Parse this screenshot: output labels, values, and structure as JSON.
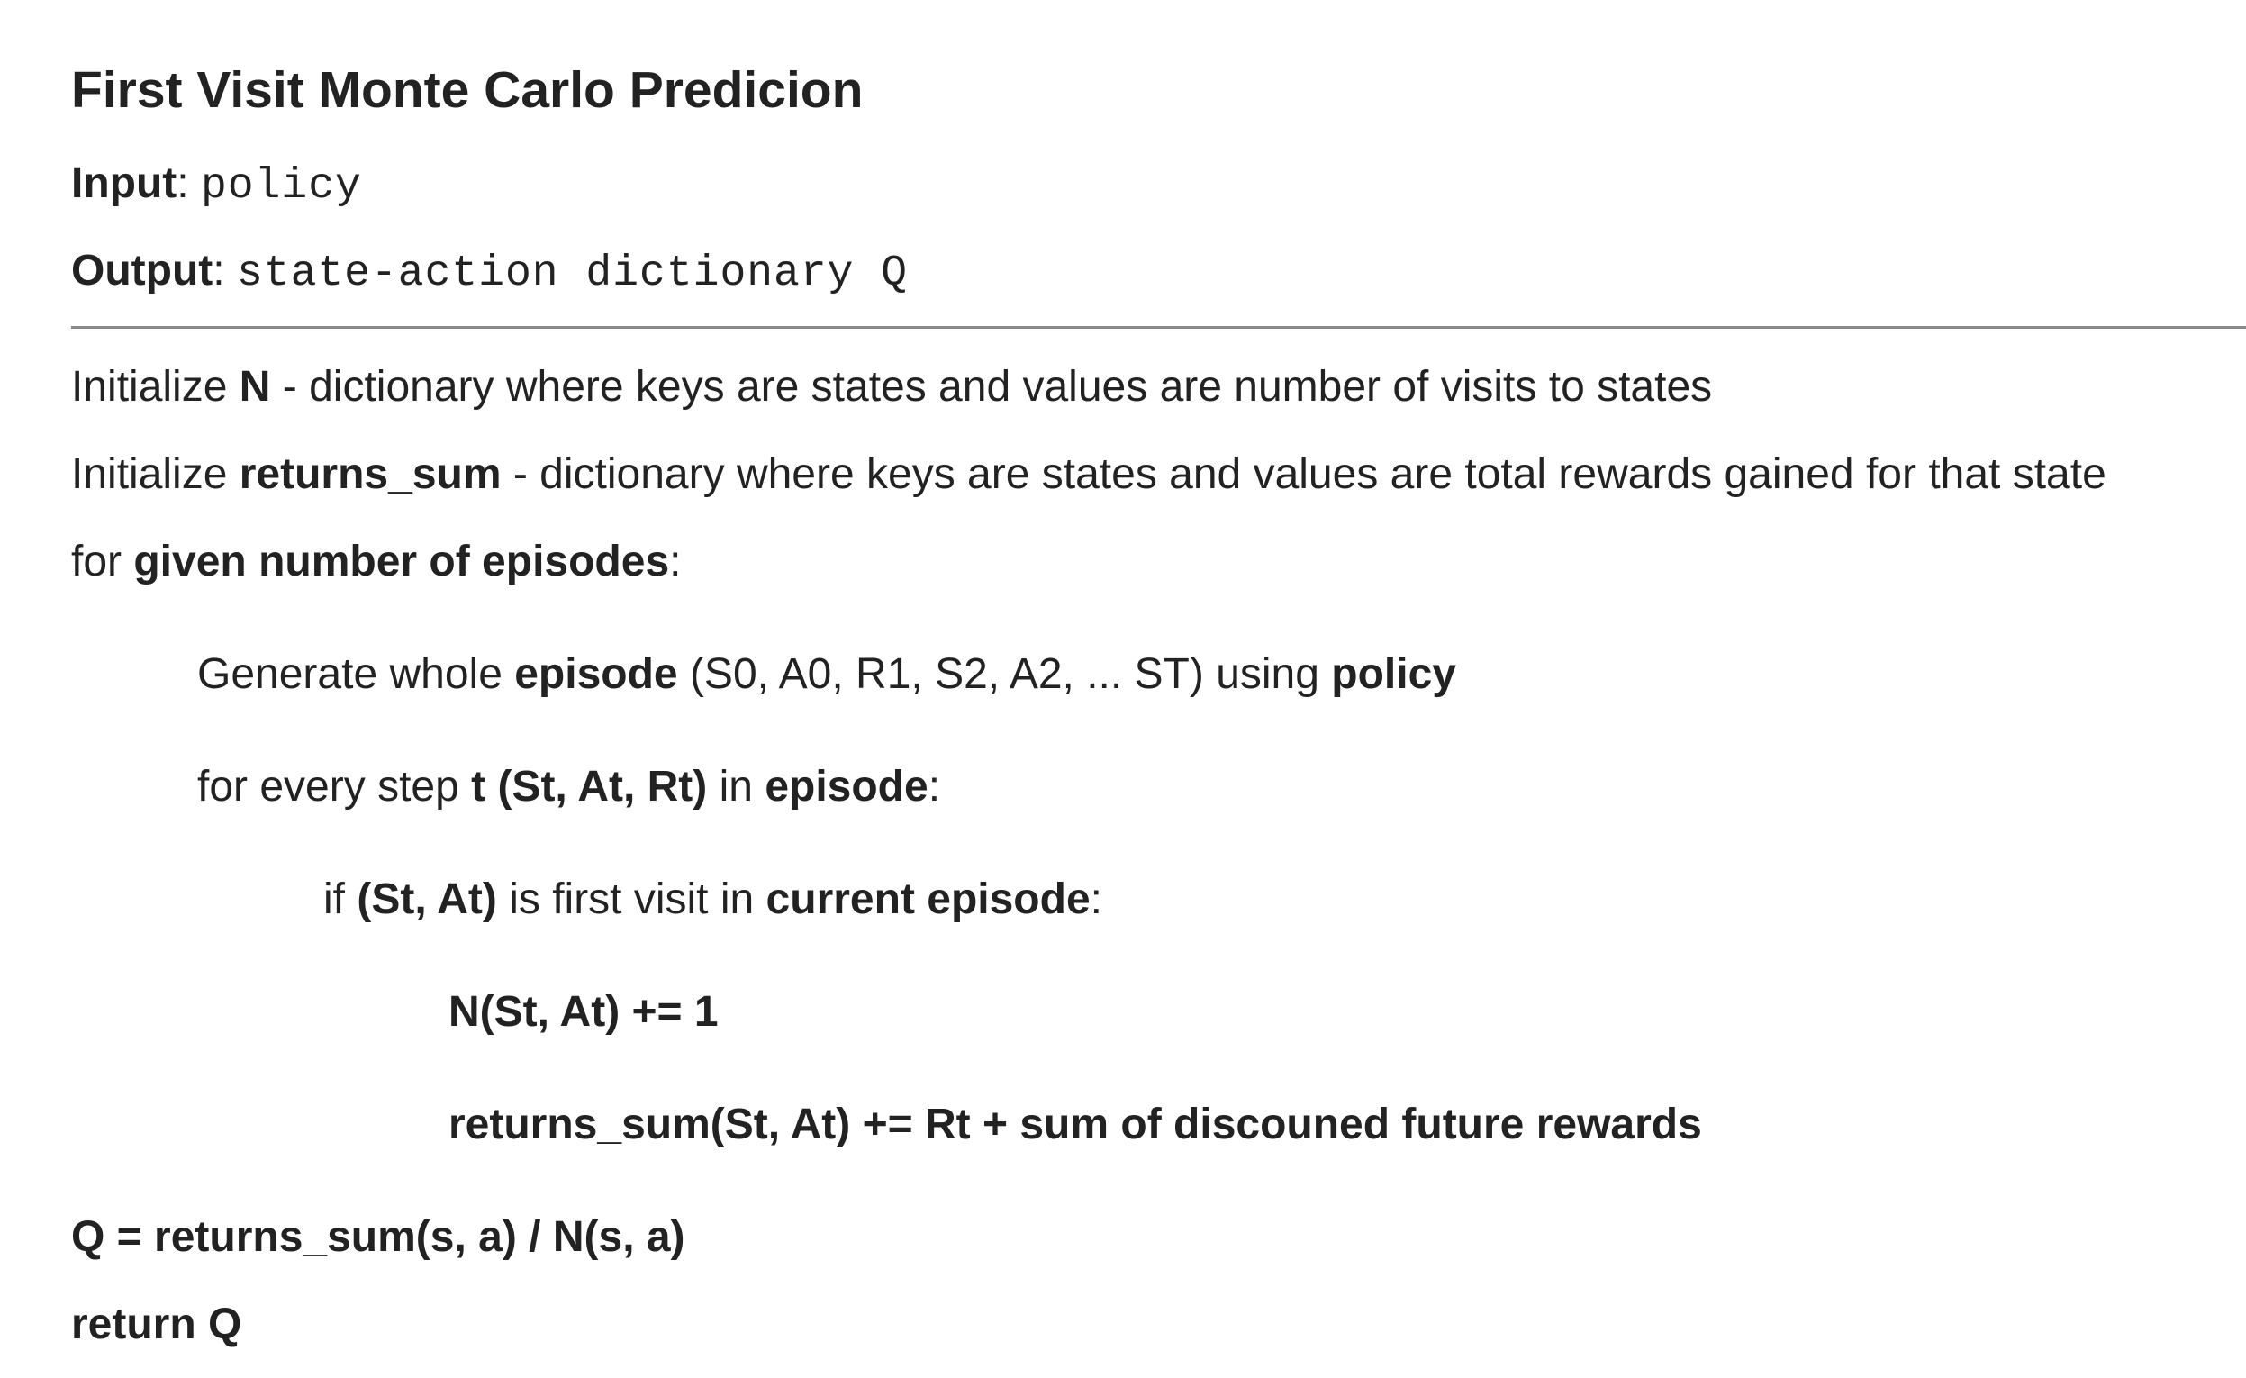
{
  "title": "First Visit Monte Carlo Predicion",
  "input": {
    "label": "Input",
    "sep": ":",
    "value": "policy"
  },
  "output": {
    "label": "Output",
    "sep": ":",
    "value": "state-action dictionary Q"
  },
  "init_n": {
    "prefix": "Initialize ",
    "var": "N",
    "desc": " - dictionary where keys are states and values are number of visits to states"
  },
  "init_returns": {
    "prefix": "Initialize ",
    "var": "returns_sum",
    "desc": " - dictionary where keys are states and values are total rewards gained for that state"
  },
  "for_episodes": {
    "prefix": "for ",
    "bold": "given number of episodes",
    "suffix": ":"
  },
  "generate": {
    "prefix": "Generate whole ",
    "bold1": "episode",
    "middle": " (S0, A0, R1, S2, A2, ... ST) using ",
    "bold2": "policy"
  },
  "for_step": {
    "prefix": "for every step ",
    "bold1": "t (St, At, Rt)",
    "middle": " in ",
    "bold2": "episode",
    "suffix": ":"
  },
  "if_first": {
    "prefix": "if ",
    "bold1": "(St, At)",
    "middle": " is first visit in ",
    "bold2": "current episode",
    "suffix": ":"
  },
  "update_n": "N(St, At) += 1",
  "update_returns": "returns_sum(St, At) += Rt + sum of discouned future rewards",
  "compute_q": "Q = returns_sum(s, a) / N(s, a)",
  "return_q": "return Q"
}
